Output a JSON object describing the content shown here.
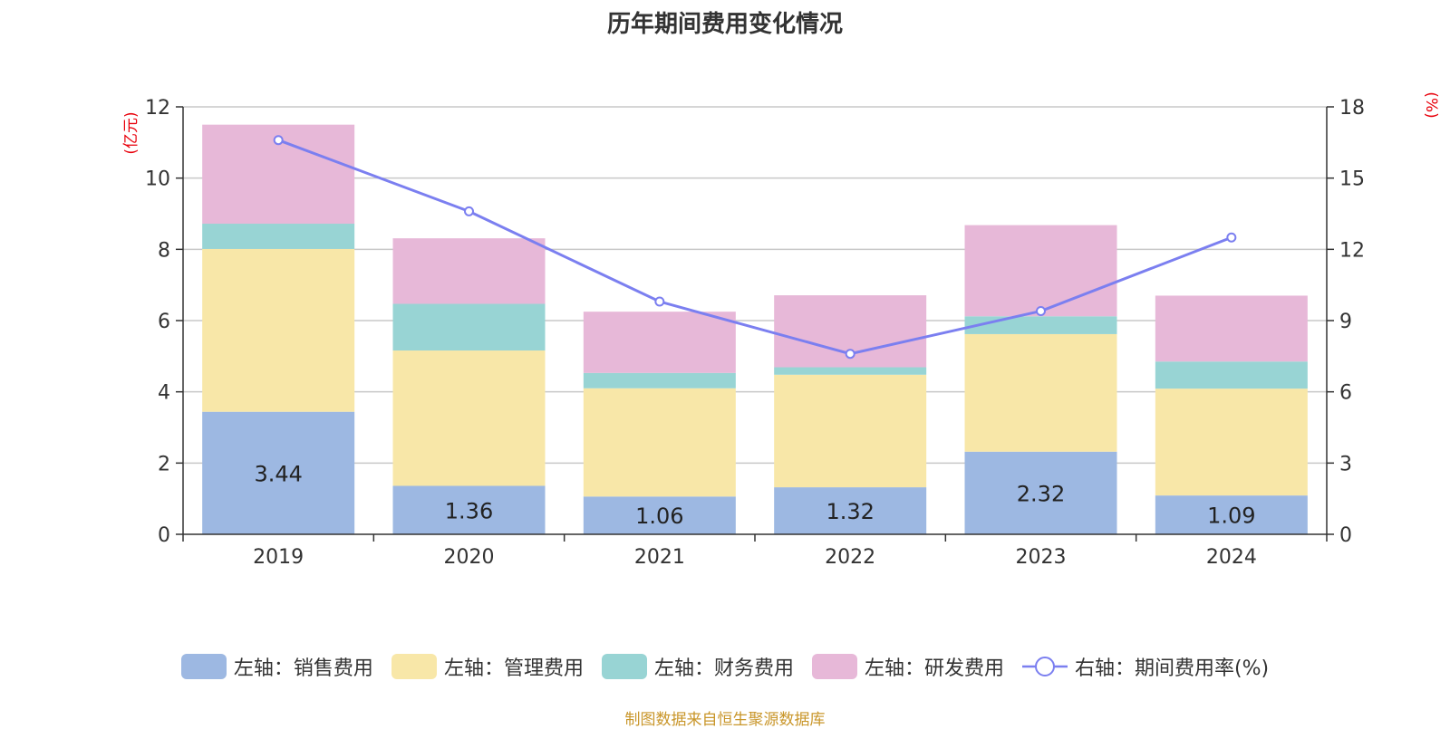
{
  "chart_data": {
    "type": "bar",
    "stacked": true,
    "title": "历年期间费用变化情况",
    "categories": [
      "2019",
      "2020",
      "2021",
      "2022",
      "2023",
      "2024"
    ],
    "left_axis": {
      "unit_label": "(亿元)",
      "ylim": [
        0,
        12
      ],
      "ticks": [
        "0",
        "2",
        "4",
        "6",
        "8",
        "10",
        "12"
      ]
    },
    "right_axis": {
      "unit_label": "(%)",
      "ylim": [
        0,
        18
      ],
      "ticks": [
        "0",
        "3",
        "6",
        "9",
        "12",
        "15",
        "18"
      ]
    },
    "grid": true,
    "series": [
      {
        "name": "左轴：销售费用",
        "color": "#9db8e2",
        "values": [
          3.44,
          1.36,
          1.06,
          1.32,
          2.32,
          1.09
        ],
        "labels": [
          "3.44",
          "1.36",
          "1.06",
          "1.32",
          "2.32",
          "1.09"
        ]
      },
      {
        "name": "左轴：管理费用",
        "color": "#f8e7a8",
        "values": [
          4.57,
          3.8,
          3.04,
          3.16,
          3.3,
          3.0
        ]
      },
      {
        "name": "左轴：财务费用",
        "color": "#98d4d4",
        "values": [
          0.71,
          1.31,
          0.43,
          0.21,
          0.5,
          0.76
        ]
      },
      {
        "name": "左轴：研发费用",
        "color": "#e7b8d8",
        "values": [
          2.78,
          1.84,
          1.72,
          2.02,
          2.56,
          1.85
        ]
      }
    ],
    "line_series": {
      "name": "右轴：期间费用率(%)",
      "color": "#7b7ff0",
      "axis": "right",
      "values": [
        16.6,
        13.6,
        9.8,
        7.6,
        9.4,
        12.5
      ]
    },
    "legend_position": "bottom"
  },
  "source_note": "制图数据来自恒生聚源数据库"
}
